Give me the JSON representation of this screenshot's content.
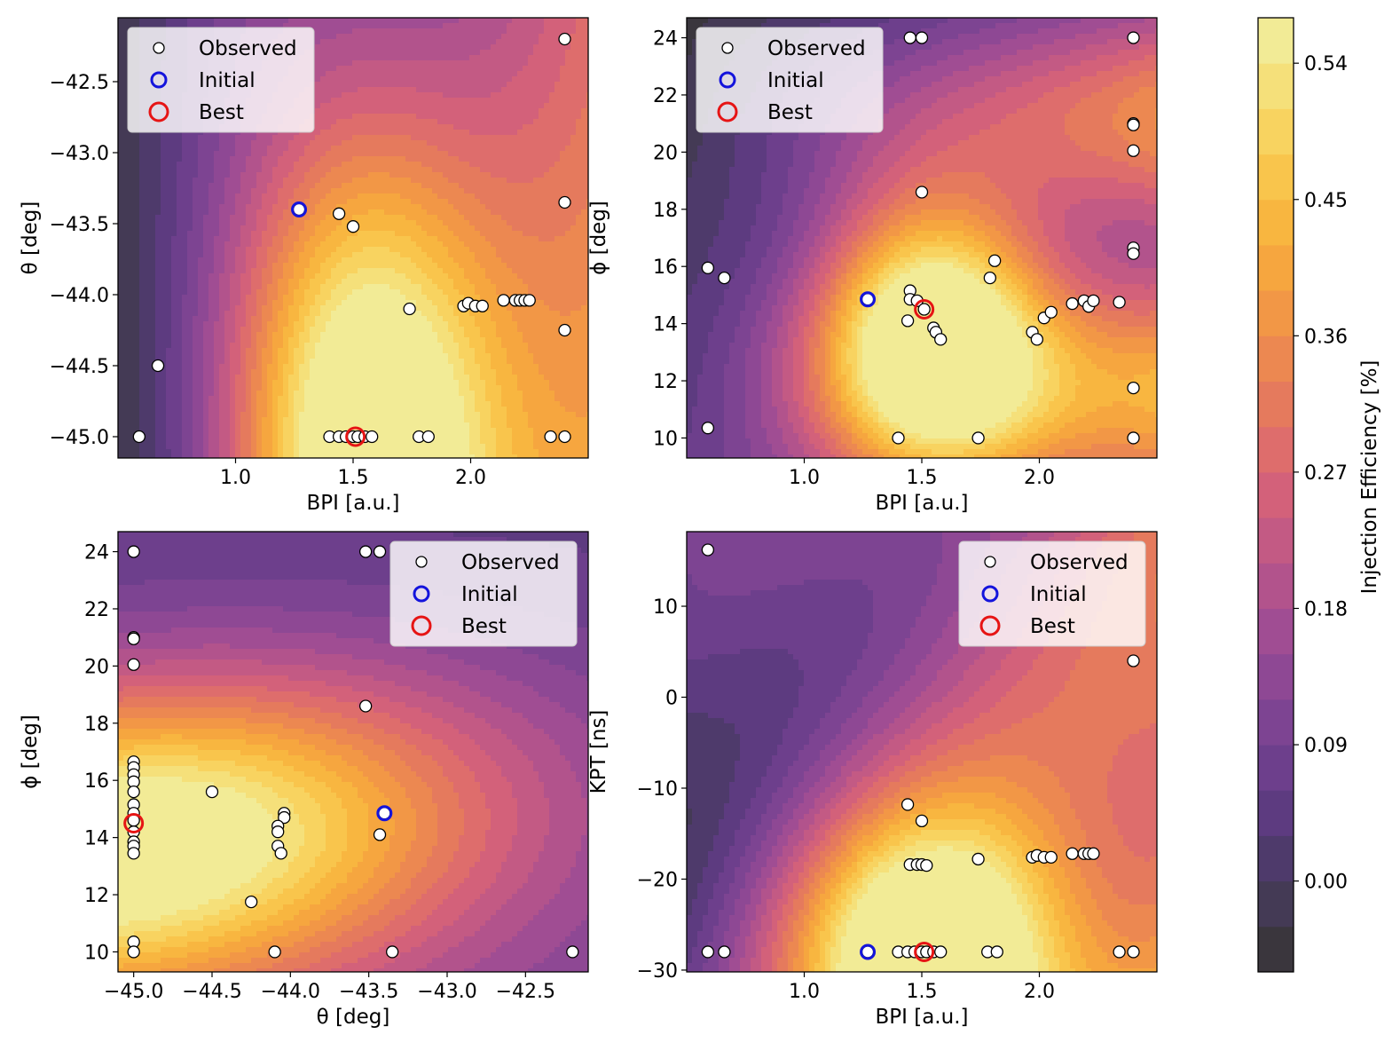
{
  "colorbar": {
    "label": "Injection Efficiency [%]",
    "ticks": [
      "0.00",
      "0.09",
      "0.18",
      "0.27",
      "0.36",
      "0.45",
      "0.54"
    ],
    "tick_values": [
      0.0,
      0.09,
      0.18,
      0.27,
      0.36,
      0.45,
      0.54
    ],
    "range": [
      -0.06,
      0.57
    ],
    "level_step": 0.03,
    "colors": [
      "#3a363d",
      "#443a55",
      "#4e3a6b",
      "#5d3b80",
      "#6d3f8c",
      "#7d4492",
      "#8e4894",
      "#a04d93",
      "#b2538c",
      "#c35a84",
      "#d3617a",
      "#de6d6c",
      "#e57a5d",
      "#ec8851",
      "#f29746",
      "#f6a63f",
      "#f8b640",
      "#f9c54c",
      "#f8d360",
      "#f5e07a",
      "#f2eb96"
    ]
  },
  "legend": {
    "observed": "Observed",
    "initial": "Initial",
    "best": "Best",
    "initial_color": "#1414dc",
    "best_color": "#e61414"
  },
  "chart_data": [
    {
      "type": "scatter",
      "id": "bpi-theta",
      "xlabel": "BPI [a.u.]",
      "ylabel": "θ [deg]",
      "xlim": [
        0.5,
        2.5
      ],
      "ylim": [
        -45.15,
        -42.05
      ],
      "xticks": [
        "1.0",
        "1.5",
        "2.0"
      ],
      "xtick_values": [
        1.0,
        1.5,
        2.0
      ],
      "yticks": [
        "−42.5",
        "−43.0",
        "−43.5",
        "−44.0",
        "−44.5",
        "−45.0"
      ],
      "ytick_values": [
        -42.5,
        -43.0,
        -43.5,
        -44.0,
        -44.5,
        -45.0
      ],
      "legend_position": "top-left",
      "observed": [
        [
          2.4,
          -42.2
        ],
        [
          2.4,
          -43.35
        ],
        [
          2.4,
          -44.25
        ],
        [
          0.67,
          -44.5
        ],
        [
          1.27,
          -43.4
        ],
        [
          1.44,
          -43.43
        ],
        [
          1.5,
          -43.52
        ],
        [
          1.74,
          -44.1
        ],
        [
          1.97,
          -44.08
        ],
        [
          1.99,
          -44.06
        ],
        [
          2.02,
          -44.08
        ],
        [
          2.05,
          -44.08
        ],
        [
          2.14,
          -44.04
        ],
        [
          2.19,
          -44.04
        ],
        [
          2.21,
          -44.04
        ],
        [
          2.23,
          -44.04
        ],
        [
          2.25,
          -44.04
        ],
        [
          0.59,
          -45.0
        ],
        [
          1.4,
          -45.0
        ],
        [
          1.44,
          -45.0
        ],
        [
          1.47,
          -45.0
        ],
        [
          1.5,
          -45.0
        ],
        [
          1.52,
          -45.0
        ],
        [
          1.55,
          -45.0
        ],
        [
          1.58,
          -45.0
        ],
        [
          1.78,
          -45.0
        ],
        [
          1.82,
          -45.0
        ],
        [
          2.34,
          -45.0
        ],
        [
          2.4,
          -45.0
        ]
      ],
      "initial": [
        1.27,
        -43.4
      ],
      "best": [
        1.51,
        -45.0
      ]
    },
    {
      "type": "scatter",
      "id": "bpi-phi",
      "xlabel": "BPI [a.u.]",
      "ylabel": "ϕ [deg]",
      "xlim": [
        0.5,
        2.5
      ],
      "ylim": [
        9.3,
        24.7
      ],
      "xticks": [
        "1.0",
        "1.5",
        "2.0"
      ],
      "xtick_values": [
        1.0,
        1.5,
        2.0
      ],
      "yticks": [
        "24",
        "22",
        "20",
        "18",
        "16",
        "14",
        "12",
        "10"
      ],
      "ytick_values": [
        24,
        22,
        20,
        18,
        16,
        14,
        12,
        10
      ],
      "legend_position": "top-left",
      "observed": [
        [
          1.45,
          24.0
        ],
        [
          1.5,
          24.0
        ],
        [
          2.4,
          24.0
        ],
        [
          2.4,
          21.0
        ],
        [
          2.4,
          20.95
        ],
        [
          2.4,
          20.05
        ],
        [
          1.5,
          18.6
        ],
        [
          2.4,
          16.65
        ],
        [
          2.4,
          16.45
        ],
        [
          0.59,
          15.95
        ],
        [
          0.66,
          15.6
        ],
        [
          1.81,
          16.2
        ],
        [
          1.79,
          15.6
        ],
        [
          1.45,
          15.15
        ],
        [
          1.45,
          14.85
        ],
        [
          1.48,
          14.8
        ],
        [
          1.51,
          14.5
        ],
        [
          1.27,
          14.85
        ],
        [
          1.44,
          14.1
        ],
        [
          1.55,
          13.85
        ],
        [
          1.56,
          13.7
        ],
        [
          1.58,
          13.45
        ],
        [
          1.97,
          13.7
        ],
        [
          1.99,
          13.45
        ],
        [
          2.02,
          14.2
        ],
        [
          2.05,
          14.4
        ],
        [
          2.14,
          14.7
        ],
        [
          2.19,
          14.8
        ],
        [
          2.21,
          14.6
        ],
        [
          2.23,
          14.8
        ],
        [
          2.34,
          14.75
        ],
        [
          2.4,
          11.75
        ],
        [
          0.59,
          10.35
        ],
        [
          1.4,
          10.0
        ],
        [
          1.74,
          10.0
        ],
        [
          2.4,
          10.0
        ]
      ],
      "initial": [
        1.27,
        14.85
      ],
      "best": [
        1.51,
        14.5
      ]
    },
    {
      "type": "scatter",
      "id": "theta-phi",
      "xlabel": "θ [deg]",
      "ylabel": "ϕ [deg]",
      "xlim": [
        -45.1,
        -42.1
      ],
      "ylim": [
        9.3,
        24.7
      ],
      "xticks": [
        "−45.0",
        "−44.5",
        "−44.0",
        "−43.5",
        "−43.0",
        "−42.5"
      ],
      "xtick_values": [
        -45.0,
        -44.5,
        -44.0,
        -43.5,
        -43.0,
        -42.5
      ],
      "yticks": [
        "24",
        "22",
        "20",
        "18",
        "16",
        "14",
        "12",
        "10"
      ],
      "ytick_values": [
        24,
        22,
        20,
        18,
        16,
        14,
        12,
        10
      ],
      "legend_position": "top-right",
      "observed": [
        [
          -45.0,
          24.0
        ],
        [
          -43.52,
          24.0
        ],
        [
          -43.43,
          24.0
        ],
        [
          -45.0,
          21.0
        ],
        [
          -45.0,
          20.95
        ],
        [
          -45.0,
          20.05
        ],
        [
          -43.52,
          18.6
        ],
        [
          -45.0,
          16.65
        ],
        [
          -45.0,
          16.45
        ],
        [
          -45.0,
          16.2
        ],
        [
          -45.0,
          15.95
        ],
        [
          -45.0,
          15.6
        ],
        [
          -45.0,
          15.15
        ],
        [
          -45.0,
          14.85
        ],
        [
          -45.0,
          14.6
        ],
        [
          -45.0,
          14.2
        ],
        [
          -45.0,
          13.85
        ],
        [
          -45.0,
          13.7
        ],
        [
          -45.0,
          13.45
        ],
        [
          -44.5,
          15.6
        ],
        [
          -44.04,
          14.85
        ],
        [
          -44.04,
          14.7
        ],
        [
          -44.08,
          14.4
        ],
        [
          -44.08,
          14.2
        ],
        [
          -44.08,
          13.7
        ],
        [
          -44.06,
          13.45
        ],
        [
          -43.43,
          14.1
        ],
        [
          -43.4,
          14.85
        ],
        [
          -44.25,
          11.75
        ],
        [
          -45.0,
          10.35
        ],
        [
          -45.0,
          10.0
        ],
        [
          -44.1,
          10.0
        ],
        [
          -43.35,
          10.0
        ],
        [
          -42.2,
          10.0
        ]
      ],
      "initial": [
        -43.4,
        14.85
      ],
      "best": [
        -45.0,
        14.5
      ]
    },
    {
      "type": "scatter",
      "id": "bpi-kpt",
      "xlabel": "BPI [a.u.]",
      "ylabel": "KPT [ns]",
      "xlim": [
        0.5,
        2.5
      ],
      "ylim": [
        -30.2,
        18.2
      ],
      "xticks": [
        "1.0",
        "1.5",
        "2.0"
      ],
      "xtick_values": [
        1.0,
        1.5,
        2.0
      ],
      "yticks": [
        "10",
        "0",
        "−10",
        "−20",
        "−30"
      ],
      "ytick_values": [
        10,
        0,
        -10,
        -20,
        -30
      ],
      "legend_position": "top-right",
      "observed": [
        [
          0.59,
          16.2
        ],
        [
          2.4,
          4.0
        ],
        [
          1.44,
          -11.8
        ],
        [
          1.5,
          -13.6
        ],
        [
          1.45,
          -18.4
        ],
        [
          1.48,
          -18.4
        ],
        [
          1.5,
          -18.4
        ],
        [
          1.52,
          -18.5
        ],
        [
          1.74,
          -17.8
        ],
        [
          1.97,
          -17.6
        ],
        [
          1.99,
          -17.4
        ],
        [
          2.02,
          -17.6
        ],
        [
          2.05,
          -17.6
        ],
        [
          2.14,
          -17.2
        ],
        [
          2.19,
          -17.2
        ],
        [
          2.21,
          -17.2
        ],
        [
          2.23,
          -17.2
        ],
        [
          0.59,
          -28.0
        ],
        [
          0.66,
          -28.0
        ],
        [
          1.27,
          -28.0
        ],
        [
          1.4,
          -28.0
        ],
        [
          1.44,
          -28.0
        ],
        [
          1.47,
          -28.0
        ],
        [
          1.5,
          -28.0
        ],
        [
          1.52,
          -28.0
        ],
        [
          1.55,
          -28.0
        ],
        [
          1.58,
          -28.0
        ],
        [
          1.78,
          -28.0
        ],
        [
          1.82,
          -28.0
        ],
        [
          2.34,
          -28.0
        ],
        [
          2.4,
          -28.0
        ]
      ],
      "initial": [
        1.27,
        -28.0
      ],
      "best": [
        1.51,
        -28.0
      ]
    }
  ]
}
